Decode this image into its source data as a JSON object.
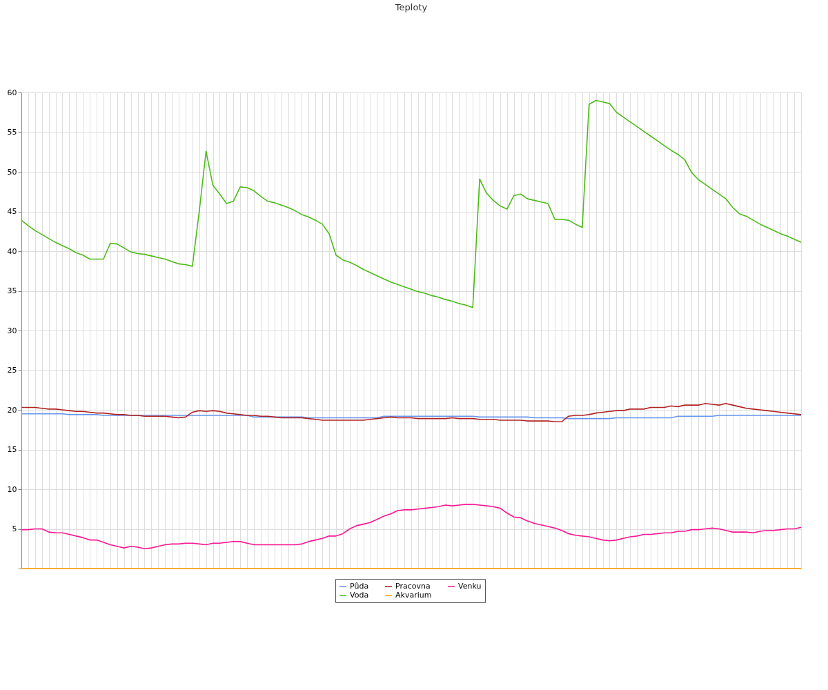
{
  "chart_data": {
    "type": "line",
    "title": "Teploty",
    "categories": [
      null,
      null,
      null,
      null,
      null,
      null,
      null,
      null,
      null,
      null,
      null,
      null,
      null,
      null,
      null,
      null,
      null,
      null,
      null,
      null,
      null,
      null,
      null,
      null,
      null,
      null,
      null,
      null,
      null,
      null,
      null,
      null,
      null,
      null,
      null,
      null,
      null,
      null,
      null,
      null,
      null,
      null,
      null,
      null,
      null,
      null,
      null,
      null,
      null,
      null,
      null,
      null,
      null,
      null,
      null,
      null,
      null,
      null,
      null,
      null,
      null,
      null,
      null,
      null,
      null,
      null,
      null,
      null,
      null,
      null,
      null,
      null,
      null,
      null,
      null,
      null,
      null,
      null,
      null,
      null,
      null,
      null,
      null,
      null,
      null,
      null,
      null,
      null,
      null,
      null,
      null,
      null,
      null,
      null,
      null,
      null,
      null,
      null,
      null,
      null,
      null,
      null,
      null,
      null,
      null,
      null,
      null,
      null,
      null,
      null,
      null,
      null,
      null,
      null,
      null
    ],
    "series": [
      {
        "name": "Půda",
        "color": "#6495ed",
        "values": [
          19.5,
          19.5,
          19.5,
          19.5,
          19.5,
          19.5,
          19.5,
          19.4,
          19.4,
          19.4,
          19.4,
          19.4,
          19.3,
          19.3,
          19.3,
          19.3,
          19.3,
          19.3,
          19.3,
          19.3,
          19.3,
          19.3,
          19.3,
          19.3,
          19.3,
          19.3,
          19.3,
          19.3,
          19.3,
          19.3,
          19.3,
          19.3,
          19.3,
          19.3,
          19.1,
          19.1,
          19.1,
          19.1,
          19.1,
          19.1,
          19.1,
          19.1,
          19.0,
          19.0,
          19.0,
          19.0,
          19.0,
          19.0,
          19.0,
          19.0,
          19.0,
          19.0,
          19.0,
          19.2,
          19.2,
          19.2,
          19.2,
          19.2,
          19.2,
          19.2,
          19.2,
          19.2,
          19.2,
          19.2,
          19.2,
          19.2,
          19.2,
          19.1,
          19.1,
          19.1,
          19.1,
          19.1,
          19.1,
          19.1,
          19.1,
          19.0,
          19.0,
          19.0,
          19.0,
          19.0,
          18.9,
          18.9,
          18.9,
          18.9,
          18.9,
          18.9,
          18.9,
          19.0,
          19.0,
          19.0,
          19.0,
          19.0,
          19.0,
          19.0,
          19.0,
          19.0,
          19.2,
          19.2,
          19.2,
          19.2,
          19.2,
          19.2,
          19.3,
          19.3,
          19.3,
          19.3,
          19.3,
          19.3,
          19.3,
          19.3,
          19.3,
          19.3,
          19.3,
          19.3,
          19.3
        ]
      },
      {
        "name": "Voda",
        "color": "#4cbb17",
        "values": [
          43.9,
          43.2,
          42.6,
          42.1,
          41.6,
          41.1,
          40.7,
          40.3,
          39.8,
          39.5,
          39.0,
          39.0,
          39.0,
          41.0,
          40.9,
          40.4,
          39.9,
          39.7,
          39.6,
          39.4,
          39.2,
          39.0,
          38.7,
          38.4,
          38.3,
          38.1,
          45.0,
          52.6,
          48.3,
          47.2,
          46.0,
          46.3,
          48.1,
          48.0,
          47.6,
          46.9,
          46.3,
          46.1,
          45.8,
          45.5,
          45.1,
          44.6,
          44.3,
          43.9,
          43.4,
          42.2,
          39.5,
          38.9,
          38.6,
          38.2,
          37.7,
          37.3,
          36.9,
          36.5,
          36.1,
          35.8,
          35.5,
          35.2,
          34.9,
          34.7,
          34.4,
          34.2,
          33.9,
          33.7,
          33.4,
          33.2,
          32.9,
          49.1,
          47.3,
          46.4,
          45.7,
          45.3,
          47.0,
          47.2,
          46.6,
          46.4,
          46.2,
          46.0,
          44.0,
          44.0,
          43.9,
          43.4,
          43.0,
          58.5,
          59.0,
          58.8,
          58.6,
          57.5,
          56.9,
          56.3,
          55.7,
          55.1,
          54.5,
          53.9,
          53.3,
          52.7,
          52.2,
          51.5,
          49.9,
          49.0,
          48.4,
          47.8,
          47.2,
          46.6,
          45.5,
          44.7,
          44.4,
          43.9,
          43.4,
          43.0,
          42.6,
          42.2,
          41.9,
          41.5,
          41.1
        ]
      },
      {
        "name": "Pracovna",
        "color": "#b22222",
        "values": [
          20.3,
          20.3,
          20.3,
          20.2,
          20.1,
          20.1,
          20.0,
          19.9,
          19.8,
          19.8,
          19.7,
          19.6,
          19.6,
          19.5,
          19.4,
          19.4,
          19.3,
          19.3,
          19.2,
          19.2,
          19.2,
          19.2,
          19.1,
          19.0,
          19.1,
          19.7,
          19.9,
          19.8,
          19.9,
          19.8,
          19.6,
          19.5,
          19.4,
          19.3,
          19.3,
          19.2,
          19.2,
          19.1,
          19.0,
          19.0,
          19.0,
          19.0,
          18.9,
          18.8,
          18.7,
          18.7,
          18.7,
          18.7,
          18.7,
          18.7,
          18.7,
          18.8,
          18.9,
          19.0,
          19.1,
          19.0,
          19.0,
          19.0,
          18.9,
          18.9,
          18.9,
          18.9,
          18.9,
          19.0,
          18.9,
          18.9,
          18.9,
          18.8,
          18.8,
          18.8,
          18.7,
          18.7,
          18.7,
          18.7,
          18.6,
          18.6,
          18.6,
          18.6,
          18.5,
          18.5,
          19.2,
          19.3,
          19.3,
          19.4,
          19.6,
          19.7,
          19.8,
          19.9,
          19.9,
          20.1,
          20.1,
          20.1,
          20.3,
          20.3,
          20.3,
          20.5,
          20.4,
          20.6,
          20.6,
          20.6,
          20.8,
          20.7,
          20.6,
          20.8,
          20.6,
          20.4,
          20.2,
          20.1,
          20.0,
          19.9,
          19.8,
          19.7,
          19.6,
          19.5,
          19.4
        ]
      },
      {
        "name": "Akvarium",
        "color": "#ffa500",
        "values": [
          0,
          0,
          0,
          0,
          0,
          0,
          0,
          0,
          0,
          0,
          0,
          0,
          0,
          0,
          0,
          0,
          0,
          0,
          0,
          0,
          0,
          0,
          0,
          0,
          0,
          0,
          0,
          0,
          0,
          0,
          0,
          0,
          0,
          0,
          0,
          0,
          0,
          0,
          0,
          0,
          0,
          0,
          0,
          0,
          0,
          0,
          0,
          0,
          0,
          0,
          0,
          0,
          0,
          0,
          0,
          0,
          0,
          0,
          0,
          0,
          0,
          0,
          0,
          0,
          0,
          0,
          0,
          0,
          0,
          0,
          0,
          0,
          0,
          0,
          0,
          0,
          0,
          0,
          0,
          0,
          0,
          0,
          0,
          0,
          0,
          0,
          0,
          0,
          0,
          0,
          0,
          0,
          0,
          0,
          0,
          0,
          0,
          0,
          0,
          0,
          0,
          0,
          0,
          0,
          0,
          0,
          0,
          0,
          0,
          0,
          0,
          0,
          0,
          0,
          0
        ]
      },
      {
        "name": "Venku",
        "color": "#ff1493",
        "values": [
          4.9,
          4.9,
          5.0,
          5.0,
          4.6,
          4.5,
          4.5,
          4.3,
          4.1,
          3.9,
          3.6,
          3.6,
          3.3,
          3.0,
          2.8,
          2.6,
          2.8,
          2.7,
          2.5,
          2.6,
          2.8,
          3.0,
          3.1,
          3.1,
          3.2,
          3.2,
          3.1,
          3.0,
          3.2,
          3.2,
          3.3,
          3.4,
          3.4,
          3.2,
          3.0,
          3.0,
          3.0,
          3.0,
          3.0,
          3.0,
          3.0,
          3.1,
          3.4,
          3.6,
          3.8,
          4.1,
          4.1,
          4.4,
          5.0,
          5.4,
          5.6,
          5.8,
          6.2,
          6.6,
          6.9,
          7.3,
          7.4,
          7.4,
          7.5,
          7.6,
          7.7,
          7.8,
          8.0,
          7.9,
          8.0,
          8.1,
          8.1,
          8.0,
          7.9,
          7.8,
          7.6,
          7.0,
          6.5,
          6.4,
          6.0,
          5.7,
          5.5,
          5.3,
          5.1,
          4.8,
          4.4,
          4.2,
          4.1,
          4.0,
          3.8,
          3.6,
          3.5,
          3.6,
          3.8,
          4.0,
          4.1,
          4.3,
          4.3,
          4.4,
          4.5,
          4.5,
          4.7,
          4.7,
          4.9,
          4.9,
          5.0,
          5.1,
          5.0,
          4.8,
          4.6,
          4.6,
          4.6,
          4.5,
          4.7,
          4.8,
          4.8,
          4.9,
          5.0,
          5.0,
          5.2
        ]
      }
    ],
    "ylim": [
      0,
      60
    ],
    "yticks": [
      {
        "value": 0,
        "label": null
      },
      5,
      10,
      15,
      20,
      25,
      30,
      35,
      40,
      45,
      50,
      55,
      60
    ],
    "tick_labels": "y",
    "grid": true,
    "legend": "bottom",
    "marker": "none",
    "line_style": "solid"
  }
}
